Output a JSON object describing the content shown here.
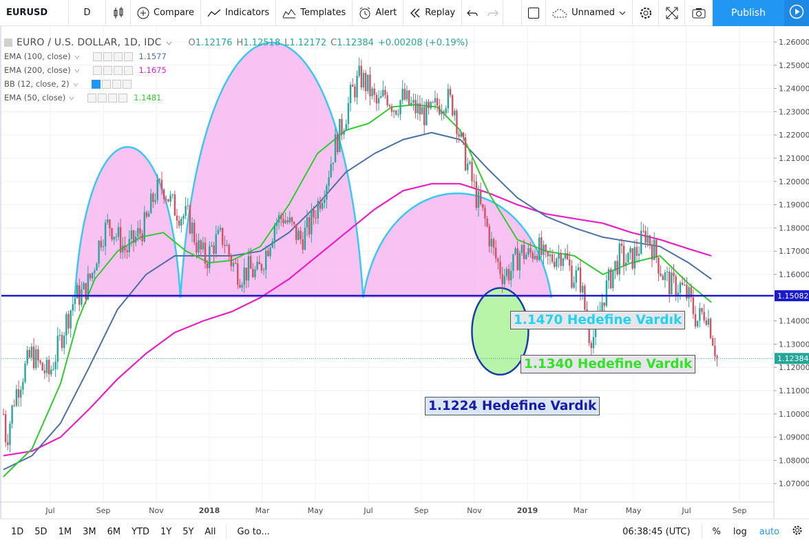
{
  "toolbar": {
    "symbol": "EURUSD",
    "interval": "D",
    "compare": "Compare",
    "indicators": "Indicators",
    "templates": "Templates",
    "alert": "Alert",
    "replay": "Replay",
    "layout_name": "Unnamed",
    "publish": "Publish"
  },
  "legend": {
    "title": "EURO / U.S. DOLLAR, 1D, IDC",
    "o_label": "O",
    "o_value": "1.12176",
    "h_label": "H",
    "h_value": "1.12518",
    "l_label": "L",
    "l_value": "1.12172",
    "c_label": "C",
    "c_value": "1.12384",
    "change": "+0.00208 (+0.19%)",
    "indicators": [
      {
        "label": "EMA (100, close)",
        "value": "1.1577",
        "color": "#4a6fa5"
      },
      {
        "label": "EMA (200, close)",
        "value": "1.1675",
        "color": "#e91ec5"
      },
      {
        "label": "BB (12, close, 2)",
        "value": "",
        "color": "#999999"
      },
      {
        "label": "EMA (50, close)",
        "value": "1.1481",
        "color": "#2ecc2e"
      }
    ]
  },
  "annotations": {
    "a1": "1.1470 Hedefine Vardık",
    "a2": "1.1340 Hedefine Vardık",
    "a3": "1.1224 Hedefine Vardık"
  },
  "bottombar": {
    "ranges": [
      "1D",
      "5D",
      "1M",
      "3M",
      "6M",
      "YTD",
      "1Y",
      "5Y",
      "All"
    ],
    "goto": "Go to...",
    "clock": "06:38:45 (UTC)",
    "percent": "%",
    "log": "log",
    "auto": "auto"
  },
  "chart_data": {
    "type": "candlestick",
    "title": "EURO / U.S. DOLLAR, 1D, IDC",
    "y_ticks": [
      "1.26000",
      "1.25000",
      "1.24000",
      "1.23000",
      "1.22000",
      "1.21000",
      "1.20000",
      "1.19000",
      "1.18000",
      "1.17000",
      "1.16000",
      "1.15000",
      "1.14000",
      "1.13000",
      "1.12000",
      "1.11000",
      "1.10000",
      "1.09000",
      "1.08000",
      "1.07000"
    ],
    "y_range": [
      1.064,
      1.2645
    ],
    "x_ticks": [
      "Jul",
      "Sep",
      "Nov",
      "2018",
      "Mar",
      "May",
      "Jul",
      "Sep",
      "Nov",
      "2019",
      "Mar",
      "May",
      "Jul",
      "Sep"
    ],
    "horizontal_line": {
      "value": 1.15082,
      "label": "1.15082",
      "color": "#1a1acc"
    },
    "last_price": {
      "value": 1.12384,
      "label": "1.12384",
      "color": "#26a69a"
    },
    "price_path": [
      [
        0,
        1.1
      ],
      [
        0.05,
        1.088
      ],
      [
        0.1,
        1.095
      ],
      [
        0.2,
        1.108
      ],
      [
        0.35,
        1.118
      ],
      [
        0.5,
        1.126
      ],
      [
        0.65,
        1.12
      ],
      [
        0.8,
        1.117
      ],
      [
        0.95,
        1.128
      ],
      [
        1.1,
        1.14
      ],
      [
        1.25,
        1.15
      ],
      [
        1.4,
        1.152
      ],
      [
        1.55,
        1.16
      ],
      [
        1.7,
        1.176
      ],
      [
        1.85,
        1.182
      ],
      [
        2.0,
        1.176
      ],
      [
        2.15,
        1.17
      ],
      [
        2.3,
        1.175
      ],
      [
        2.5,
        1.182
      ],
      [
        2.65,
        1.195
      ],
      [
        2.8,
        1.198
      ],
      [
        2.95,
        1.19
      ],
      [
        3.1,
        1.186
      ],
      [
        3.25,
        1.184
      ],
      [
        3.4,
        1.172
      ],
      [
        3.55,
        1.166
      ],
      [
        3.7,
        1.174
      ],
      [
        3.85,
        1.176
      ],
      [
        4.0,
        1.165
      ],
      [
        4.15,
        1.16
      ],
      [
        4.3,
        1.162
      ],
      [
        4.45,
        1.16
      ],
      [
        4.6,
        1.17
      ],
      [
        4.75,
        1.182
      ],
      [
        4.9,
        1.185
      ],
      [
        5.05,
        1.18
      ],
      [
        5.2,
        1.175
      ],
      [
        5.35,
        1.18
      ],
      [
        5.5,
        1.19
      ],
      [
        5.65,
        1.2
      ],
      [
        5.8,
        1.215
      ],
      [
        5.95,
        1.225
      ],
      [
        6.1,
        1.238
      ],
      [
        6.25,
        1.245
      ],
      [
        6.4,
        1.24
      ],
      [
        6.55,
        1.232
      ],
      [
        6.7,
        1.238
      ],
      [
        6.85,
        1.232
      ],
      [
        7.0,
        1.236
      ],
      [
        7.15,
        1.232
      ],
      [
        7.3,
        1.23
      ],
      [
        7.45,
        1.228
      ],
      [
        7.6,
        1.233
      ],
      [
        7.75,
        1.236
      ],
      [
        7.9,
        1.232
      ],
      [
        8.0,
        1.218
      ],
      [
        8.15,
        1.205
      ],
      [
        8.3,
        1.192
      ],
      [
        8.45,
        1.182
      ],
      [
        8.6,
        1.168
      ],
      [
        8.75,
        1.16
      ],
      [
        8.9,
        1.162
      ],
      [
        9.05,
        1.17
      ],
      [
        9.2,
        1.168
      ],
      [
        9.35,
        1.172
      ],
      [
        9.5,
        1.165
      ],
      [
        9.65,
        1.168
      ],
      [
        9.8,
        1.17
      ],
      [
        9.95,
        1.16
      ],
      [
        10.1,
        1.158
      ],
      [
        10.25,
        1.135
      ],
      [
        10.35,
        1.133
      ],
      [
        10.5,
        1.15
      ],
      [
        10.65,
        1.16
      ],
      [
        10.8,
        1.168
      ],
      [
        10.95,
        1.165
      ],
      [
        11.1,
        1.17
      ],
      [
        11.25,
        1.178
      ],
      [
        11.4,
        1.17
      ],
      [
        11.55,
        1.16
      ],
      [
        11.7,
        1.155
      ],
      [
        11.85,
        1.155
      ],
      [
        12.0,
        1.15
      ],
      [
        12.15,
        1.14
      ],
      [
        12.3,
        1.145
      ],
      [
        12.4,
        1.136
      ],
      [
        12.5,
        1.124
      ]
    ],
    "ema50": [
      [
        0,
        1.073
      ],
      [
        0.5,
        1.085
      ],
      [
        1.0,
        1.113
      ],
      [
        1.3,
        1.14
      ],
      [
        1.6,
        1.158
      ],
      [
        2.0,
        1.17
      ],
      [
        2.4,
        1.176
      ],
      [
        2.8,
        1.178
      ],
      [
        3.2,
        1.17
      ],
      [
        3.6,
        1.165
      ],
      [
        4.0,
        1.166
      ],
      [
        4.5,
        1.172
      ],
      [
        5.0,
        1.19
      ],
      [
        5.5,
        1.212
      ],
      [
        6.0,
        1.222
      ],
      [
        6.4,
        1.225
      ],
      [
        6.8,
        1.232
      ],
      [
        7.2,
        1.233
      ],
      [
        7.6,
        1.232
      ],
      [
        8.0,
        1.222
      ],
      [
        8.5,
        1.195
      ],
      [
        9.0,
        1.175
      ],
      [
        9.5,
        1.17
      ],
      [
        10.0,
        1.168
      ],
      [
        10.5,
        1.16
      ],
      [
        11.0,
        1.165
      ],
      [
        11.5,
        1.168
      ],
      [
        12.0,
        1.156
      ],
      [
        12.4,
        1.148
      ]
    ],
    "ema100": [
      [
        0,
        1.076
      ],
      [
        0.5,
        1.082
      ],
      [
        1.0,
        1.096
      ],
      [
        1.5,
        1.12
      ],
      [
        2.0,
        1.145
      ],
      [
        2.5,
        1.16
      ],
      [
        3.0,
        1.168
      ],
      [
        3.5,
        1.168
      ],
      [
        4.0,
        1.168
      ],
      [
        4.5,
        1.17
      ],
      [
        5.0,
        1.178
      ],
      [
        5.5,
        1.19
      ],
      [
        6.0,
        1.204
      ],
      [
        6.5,
        1.212
      ],
      [
        7.0,
        1.218
      ],
      [
        7.5,
        1.221
      ],
      [
        8.0,
        1.218
      ],
      [
        8.5,
        1.205
      ],
      [
        9.0,
        1.193
      ],
      [
        9.5,
        1.185
      ],
      [
        10.0,
        1.18
      ],
      [
        10.5,
        1.176
      ],
      [
        11.0,
        1.174
      ],
      [
        11.5,
        1.172
      ],
      [
        12.0,
        1.165
      ],
      [
        12.4,
        1.158
      ]
    ],
    "ema200": [
      [
        0,
        1.082
      ],
      [
        0.5,
        1.084
      ],
      [
        1.0,
        1.09
      ],
      [
        1.5,
        1.102
      ],
      [
        2.0,
        1.115
      ],
      [
        2.5,
        1.126
      ],
      [
        3.0,
        1.135
      ],
      [
        3.5,
        1.14
      ],
      [
        4.0,
        1.144
      ],
      [
        4.5,
        1.15
      ],
      [
        5.0,
        1.158
      ],
      [
        5.5,
        1.168
      ],
      [
        6.0,
        1.178
      ],
      [
        6.5,
        1.188
      ],
      [
        7.0,
        1.196
      ],
      [
        7.5,
        1.199
      ],
      [
        8.0,
        1.199
      ],
      [
        8.5,
        1.195
      ],
      [
        9.0,
        1.19
      ],
      [
        9.5,
        1.186
      ],
      [
        10.0,
        1.184
      ],
      [
        10.5,
        1.182
      ],
      [
        11.0,
        1.178
      ],
      [
        11.5,
        1.175
      ],
      [
        12.0,
        1.171
      ],
      [
        12.4,
        1.168
      ]
    ],
    "domes": [
      {
        "from": 1.25,
        "to": 3.1,
        "peak": 1.215,
        "base": 1.15
      },
      {
        "from": 3.1,
        "to": 6.3,
        "peak": 1.26,
        "base": 1.15
      },
      {
        "from": 6.3,
        "to": 9.6,
        "peak": 1.195,
        "base": 1.15
      }
    ],
    "ellipse": {
      "center_x": 8.7,
      "center_y": 1.1355,
      "color": "#1a3ab0",
      "fill": "#b8f5a8"
    },
    "x_domain": [
      0,
      13.0
    ]
  }
}
